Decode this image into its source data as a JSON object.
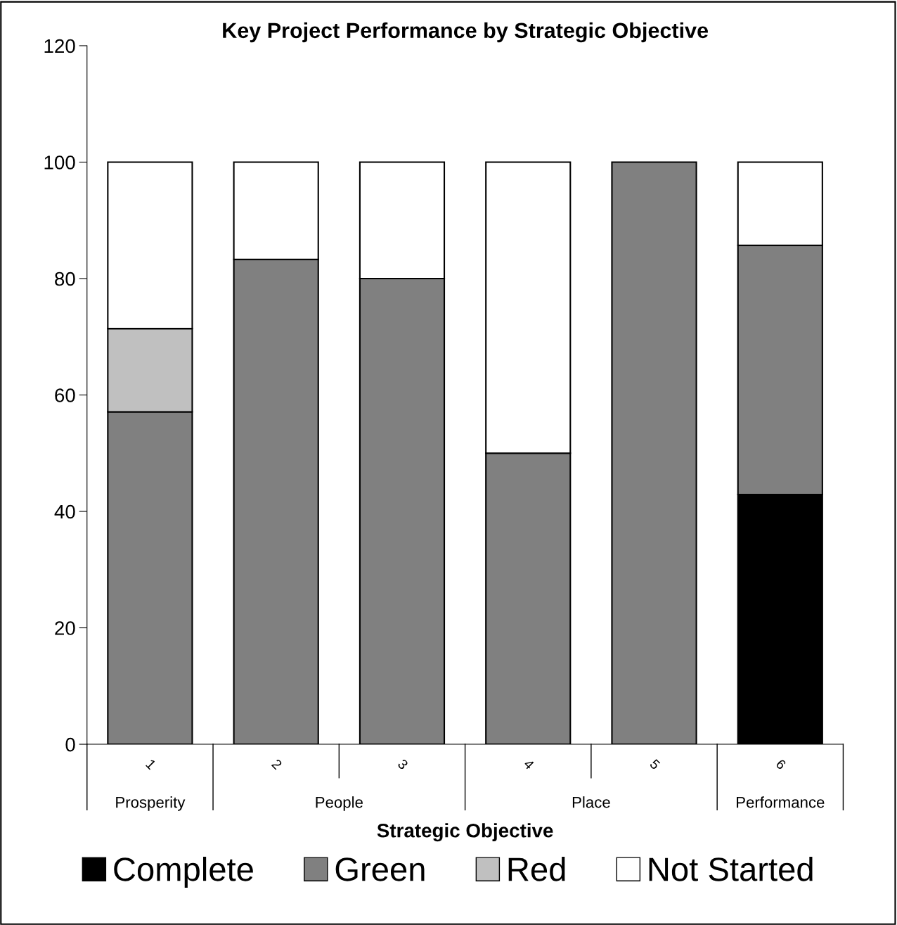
{
  "chart_data": {
    "type": "bar",
    "title": "Key Project Performance by Strategic Objective",
    "xlabel": "Strategic Objective",
    "categories": [
      "1",
      "2",
      "3",
      "4",
      "5",
      "6"
    ],
    "stacked": true,
    "series": [
      {
        "name": "Complete",
        "color": "#000000",
        "values": [
          null,
          null,
          null,
          null,
          null,
          42.9
        ]
      },
      {
        "name": "Green",
        "color": "#808080",
        "values": [
          57.1,
          83.3,
          80,
          50,
          100,
          42.8
        ]
      },
      {
        "name": "Red",
        "color": "#c0c0c0",
        "values": [
          14.3,
          null,
          null,
          null,
          null,
          null
        ]
      },
      {
        "name": "Not Started",
        "color": "#ffffff",
        "values": [
          28.6,
          16.7,
          20,
          50,
          null,
          14.3
        ]
      }
    ],
    "annotations": [
      "Prosperity",
      "People",
      "Place",
      "Performance"
    ],
    "ylim": [
      0,
      120
    ],
    "yticks": [
      0,
      20,
      40,
      60,
      80,
      100,
      120
    ],
    "grid": false,
    "legend": "bottom"
  }
}
